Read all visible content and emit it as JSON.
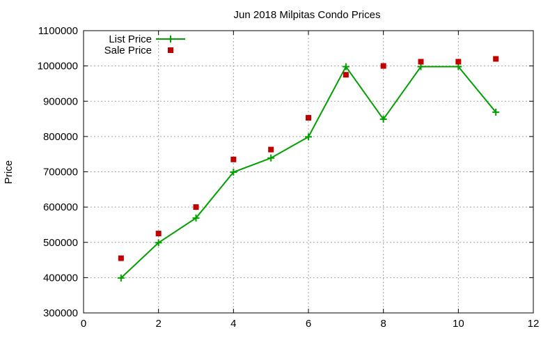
{
  "chart_data": {
    "type": "line",
    "title": "Jun 2018 Milpitas Condo Prices",
    "ylabel": "Price",
    "xlim": [
      0,
      12
    ],
    "ylim": [
      300000,
      1100000
    ],
    "xticks": [
      0,
      2,
      4,
      6,
      8,
      10,
      12
    ],
    "yticks": [
      300000,
      400000,
      500000,
      600000,
      700000,
      800000,
      900000,
      1000000,
      1100000
    ],
    "grid": true,
    "legend_position": "top-left",
    "series": [
      {
        "name": "List Price",
        "style": "line-with-plus-markers",
        "color": "#00a000",
        "x": [
          1,
          2,
          3,
          4,
          5,
          6,
          7,
          8,
          9,
          10,
          11
        ],
        "y": [
          399000,
          499000,
          569000,
          699000,
          739000,
          799000,
          998000,
          849000,
          998000,
          998000,
          869000
        ]
      },
      {
        "name": "Sale Price",
        "style": "square-markers",
        "color": "#c00000",
        "x": [
          1,
          2,
          3,
          4,
          5,
          6,
          7,
          8,
          9,
          10,
          11
        ],
        "y": [
          455000,
          525000,
          600000,
          735000,
          763000,
          853000,
          975000,
          1000000,
          1012000,
          1012000,
          1020000
        ]
      }
    ]
  }
}
